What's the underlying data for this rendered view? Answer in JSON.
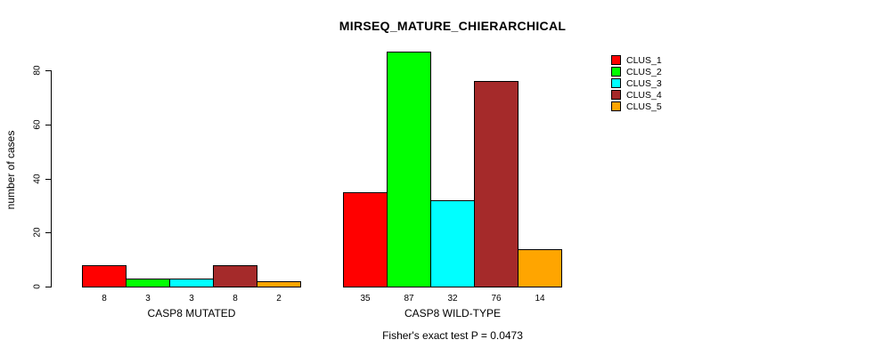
{
  "chart_data": {
    "type": "bar",
    "title": "MIRSEQ_MATURE_CHIERARCHICAL",
    "ylabel": "number of cases",
    "xlabel": "",
    "ylim": [
      0,
      88
    ],
    "yticks": [
      0,
      20,
      40,
      60,
      80
    ],
    "grid": false,
    "legend_position": "top-right",
    "categories": [
      "CASP8 MUTATED",
      "CASP8 WILD-TYPE"
    ],
    "series": [
      {
        "name": "CLUS_1",
        "color": "#ff0000",
        "values": [
          8,
          35
        ]
      },
      {
        "name": "CLUS_2",
        "color": "#00ff00",
        "values": [
          3,
          87
        ]
      },
      {
        "name": "CLUS_3",
        "color": "#00ffff",
        "values": [
          3,
          32
        ]
      },
      {
        "name": "CLUS_4",
        "color": "#a52a2a",
        "values": [
          8,
          76
        ]
      },
      {
        "name": "CLUS_5",
        "color": "#ffa500",
        "values": [
          2,
          14
        ]
      }
    ],
    "bar_value_labels": [
      [
        8,
        3,
        3,
        8,
        2
      ],
      [
        35,
        87,
        32,
        76,
        14
      ]
    ],
    "annotation": "Fisher's exact test P = 0.0473",
    "colors": {
      "background": "#ffffff",
      "axis": "#000000",
      "text": "#000000"
    }
  }
}
